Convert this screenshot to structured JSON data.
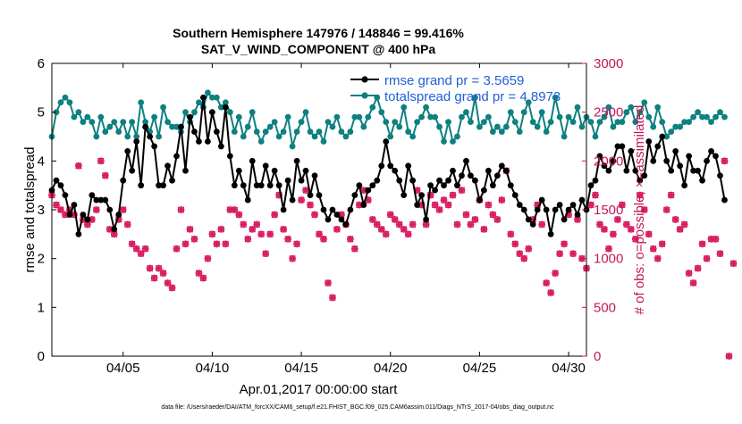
{
  "chart_data": {
    "type": "line",
    "title_line1": "Southern Hemisphere 147976 / 148846 = 99.416%",
    "title_line2": "SAT_V_WIND_COMPONENT @ 400 hPa",
    "xlabel": "Apr.01,2017 00:00:00 start",
    "ylabel_left": "rmse and totalspread",
    "ylabel_right": "# of obs: o=possible; ×=assimilated",
    "footer": "data file: /Users/raeder/DAI/ATM_forcXX/CAM6_setup/f.e21.FHIST_BGC.f09_025.CAM6assim.011/Diags_NTrS_2017-04/obs_diag_output.nc",
    "x_range_days": [
      1.0,
      31.0
    ],
    "x_ticks": [
      {
        "day": 5,
        "label": "04/05"
      },
      {
        "day": 10,
        "label": "04/10"
      },
      {
        "day": 15,
        "label": "04/15"
      },
      {
        "day": 20,
        "label": "04/20"
      },
      {
        "day": 25,
        "label": "04/25"
      },
      {
        "day": 30,
        "label": "04/30"
      }
    ],
    "ylim_left": [
      0,
      6
    ],
    "yticks_left": [
      0,
      1,
      2,
      3,
      4,
      5,
      6
    ],
    "ylim_right": [
      0,
      3000
    ],
    "yticks_right": [
      0,
      500,
      1000,
      1500,
      2000,
      2500,
      3000
    ],
    "legend_position": "top-right",
    "colors": {
      "rmse": "#000000",
      "spread": "#0e8080",
      "obs": "#d81b60",
      "right_axis": "#c2185b"
    },
    "series": [
      {
        "name": "rmse grand pr = 3.5659",
        "axis": "left",
        "color": "#000000",
        "x_start": 1.0,
        "x_step": 0.25,
        "values": [
          3.4,
          3.6,
          3.5,
          3.3,
          2.9,
          3.1,
          2.5,
          2.9,
          2.8,
          3.3,
          3.2,
          3.2,
          3.2,
          3.0,
          2.6,
          2.9,
          3.6,
          4.2,
          3.8,
          4.4,
          3.5,
          4.7,
          4.5,
          4.3,
          3.5,
          3.5,
          3.9,
          3.6,
          4.1,
          4.7,
          3.8,
          4.9,
          4.6,
          4.4,
          5.3,
          4.4,
          5.0,
          4.6,
          4.3,
          5.1,
          4.1,
          3.5,
          3.8,
          3.5,
          3.2,
          4.0,
          3.5,
          3.5,
          3.9,
          3.5,
          3.8,
          3.5,
          3.0,
          3.6,
          3.2,
          4.0,
          3.6,
          3.8,
          3.3,
          3.7,
          3.3,
          3.0,
          2.8,
          3.0,
          2.9,
          2.8,
          2.7,
          3.0,
          3.3,
          3.5,
          3.1,
          3.4,
          3.5,
          3.6,
          3.9,
          4.4,
          3.9,
          3.8,
          3.6,
          3.3,
          3.9,
          3.6,
          3.1,
          3.3,
          2.8,
          3.5,
          3.4,
          3.6,
          3.5,
          3.6,
          3.8,
          3.5,
          3.7,
          4.0,
          3.7,
          3.6,
          3.2,
          3.4,
          3.8,
          3.5,
          3.7,
          3.9,
          3.8,
          3.5,
          3.3,
          3.1,
          3.0,
          2.8,
          2.7,
          3.0,
          3.2,
          3.0,
          2.5,
          3.0,
          3.1,
          2.8,
          3.0,
          3.1,
          2.9,
          3.2,
          3.0,
          3.5,
          3.6,
          4.1,
          3.9,
          3.8,
          4.0,
          4.3,
          4.3,
          3.8,
          4.2,
          3.8,
          3.6,
          3.7,
          4.4,
          4.0,
          4.3,
          4.5,
          4.0,
          3.8,
          4.2,
          3.9,
          3.5,
          4.1,
          3.8,
          3.8,
          3.6,
          4.0,
          4.2,
          4.1,
          3.7,
          3.2
        ]
      },
      {
        "name": "totalspread grand pr = 4.8973",
        "axis": "left",
        "color": "#0e8080",
        "x_start": 1.0,
        "x_step": 0.25,
        "values": [
          4.5,
          5.0,
          5.2,
          5.3,
          5.2,
          4.9,
          5.0,
          4.8,
          4.9,
          4.8,
          4.5,
          4.9,
          4.6,
          4.7,
          4.8,
          4.6,
          4.8,
          4.5,
          4.8,
          4.5,
          5.2,
          4.8,
          4.6,
          4.9,
          4.5,
          5.1,
          4.8,
          4.7,
          4.7,
          4.6,
          5.0,
          4.8,
          5.0,
          5.2,
          5.1,
          5.4,
          5.3,
          5.3,
          5.1,
          5.2,
          5.0,
          4.6,
          4.9,
          4.5,
          4.7,
          5.0,
          4.6,
          4.4,
          4.6,
          4.7,
          4.8,
          4.5,
          4.6,
          4.9,
          4.3,
          4.6,
          4.8,
          5.0,
          4.6,
          4.5,
          4.6,
          4.4,
          4.8,
          4.7,
          4.9,
          4.6,
          4.5,
          4.6,
          4.9,
          4.9,
          4.7,
          4.9,
          5.1,
          5.3,
          5.0,
          4.8,
          4.5,
          4.8,
          4.7,
          5.1,
          4.6,
          4.5,
          4.8,
          4.9,
          5.1,
          4.9,
          4.9,
          4.7,
          4.4,
          4.8,
          4.4,
          4.5,
          4.9,
          5.0,
          4.8,
          5.3,
          4.7,
          4.8,
          4.9,
          4.6,
          4.7,
          4.6,
          4.7,
          5.0,
          4.8,
          4.6,
          5.0,
          5.2,
          4.8,
          4.7,
          5.0,
          4.6,
          4.8,
          5.3,
          4.9,
          4.5,
          4.9,
          4.8,
          5.1,
          4.7,
          4.9,
          4.8,
          4.5,
          4.8,
          4.9,
          5.1,
          4.7,
          4.8,
          4.8,
          5.0,
          5.1,
          4.8,
          5.0,
          5.2,
          4.9,
          4.7,
          5.1,
          4.8,
          4.5,
          4.6,
          4.7,
          4.7,
          4.8,
          4.8,
          4.9,
          5.0,
          4.9,
          4.9,
          4.8,
          4.9,
          5.0,
          4.9
        ]
      },
      {
        "name": "# of obs (possible / assimilated)",
        "axis": "right",
        "color": "#d81b60",
        "x_start": 1.0,
        "x_step": 0.25,
        "values": [
          1650,
          1550,
          1500,
          1450,
          1500,
          1450,
          1950,
          1400,
          1350,
          1400,
          1500,
          2000,
          1850,
          1300,
          1250,
          1400,
          1500,
          1350,
          1150,
          1100,
          1050,
          1100,
          900,
          800,
          900,
          850,
          750,
          700,
          1100,
          1500,
          1150,
          1300,
          1200,
          850,
          800,
          1000,
          1250,
          1150,
          1300,
          1150,
          1500,
          1500,
          1450,
          1350,
          1200,
          1300,
          1350,
          1250,
          1050,
          1250,
          1450,
          1650,
          1300,
          1200,
          1000,
          1150,
          1600,
          1700,
          1550,
          1450,
          1250,
          1200,
          750,
          600,
          1300,
          1450,
          1350,
          1200,
          1100,
          1550,
          1700,
          1600,
          1400,
          1350,
          1300,
          1250,
          1450,
          1400,
          1350,
          1300,
          1250,
          1350,
          1700,
          1550,
          1350,
          1650,
          1550,
          1500,
          1600,
          1550,
          1650,
          1350,
          1700,
          1450,
          1350,
          1400,
          1600,
          1300,
          1550,
          1450,
          1400,
          1600,
          1900,
          1250,
          1150,
          1050,
          1000,
          1100,
          1400,
          1550,
          1350,
          750,
          650,
          850,
          1050,
          1150,
          1450,
          1050,
          1400,
          1000,
          900,
          1550,
          1650,
          1350,
          1300,
          1100,
          1250,
          1400,
          1550,
          1350,
          1300,
          1200,
          1650,
          1500,
          1250,
          1100,
          1000,
          1150,
          1500,
          1650,
          1400,
          1300,
          1350,
          850,
          750,
          900,
          1150,
          1000,
          1200,
          1200,
          1050,
          2000,
          0,
          950
        ]
      }
    ]
  }
}
